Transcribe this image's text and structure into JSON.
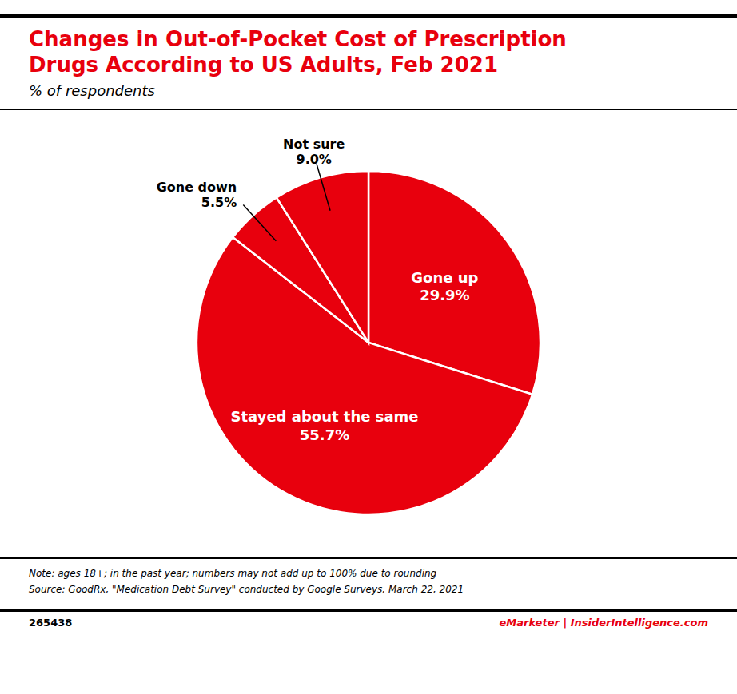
{
  "chart_data": {
    "type": "pie",
    "title": "Changes in Out-of-Pocket Cost of Prescription\nDrugs According to US Adults, Feb 2021",
    "subtitle": "% of respondents",
    "categories": [
      "Gone up",
      "Stayed about the same",
      "Gone down",
      "Not sure"
    ],
    "values": [
      29.9,
      55.7,
      5.5,
      9.0
    ],
    "value_labels": [
      "29.9%",
      "55.7%",
      "5.5%",
      "9.0%"
    ],
    "data_labels": true,
    "color": "#e8000d",
    "annotations": [
      "Note: ages 18+; in the past year; numbers may not add up to 100% due to rounding",
      "Source: GoodRx, \"Medication Debt Survey\" conducted by Google Surveys, March 22, 2021",
      "265438",
      "eMarketer | InsiderIntelligence.com"
    ]
  }
}
